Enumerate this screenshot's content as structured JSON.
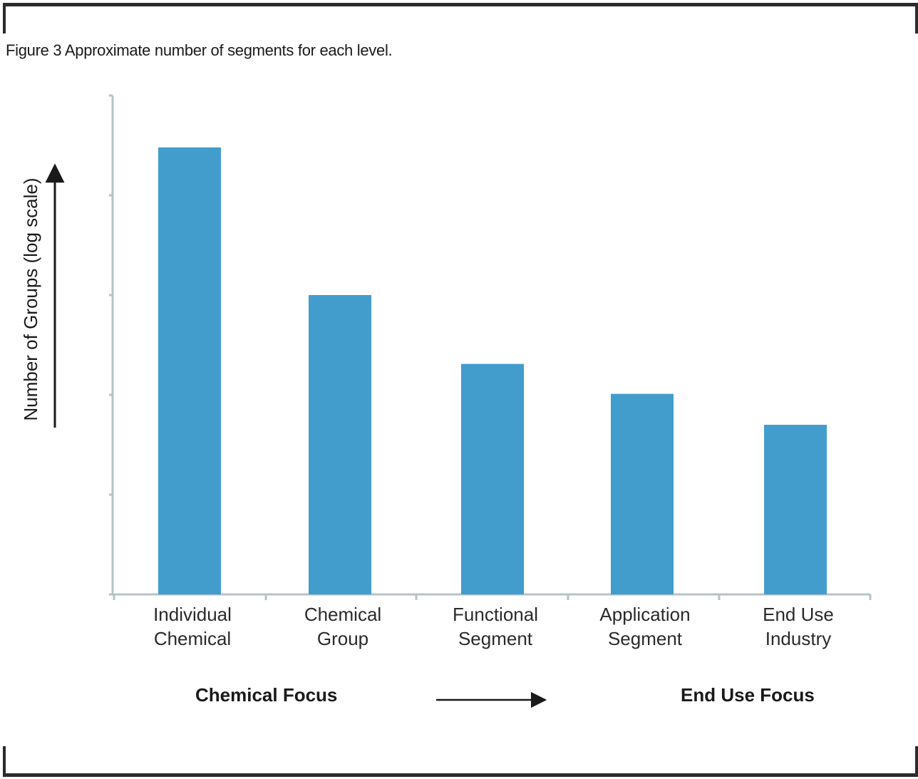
{
  "figure": {
    "title": "Figure 3 Approximate number of segments for each level."
  },
  "chart_data": {
    "type": "bar",
    "ylabel": "Number of Groups (log scale)",
    "yscale": "log",
    "ylim": [
      0,
      5
    ],
    "y_ticks_labeled": false,
    "categories": [
      [
        "Individual",
        "Chemical"
      ],
      [
        "Chemical",
        "Group"
      ],
      [
        "Functional",
        "Segment"
      ],
      [
        "Application",
        "Segment"
      ],
      [
        "End Use",
        "Industry"
      ]
    ],
    "values": [
      4.48,
      3.0,
      2.31,
      2.01,
      1.7
    ],
    "bar_color": "#429dcd",
    "axis_color": "#b5c3ca",
    "grid": false,
    "legend": "none"
  },
  "focus_axis": {
    "left_label": "Chemical Focus",
    "right_label": "End Use Focus"
  }
}
